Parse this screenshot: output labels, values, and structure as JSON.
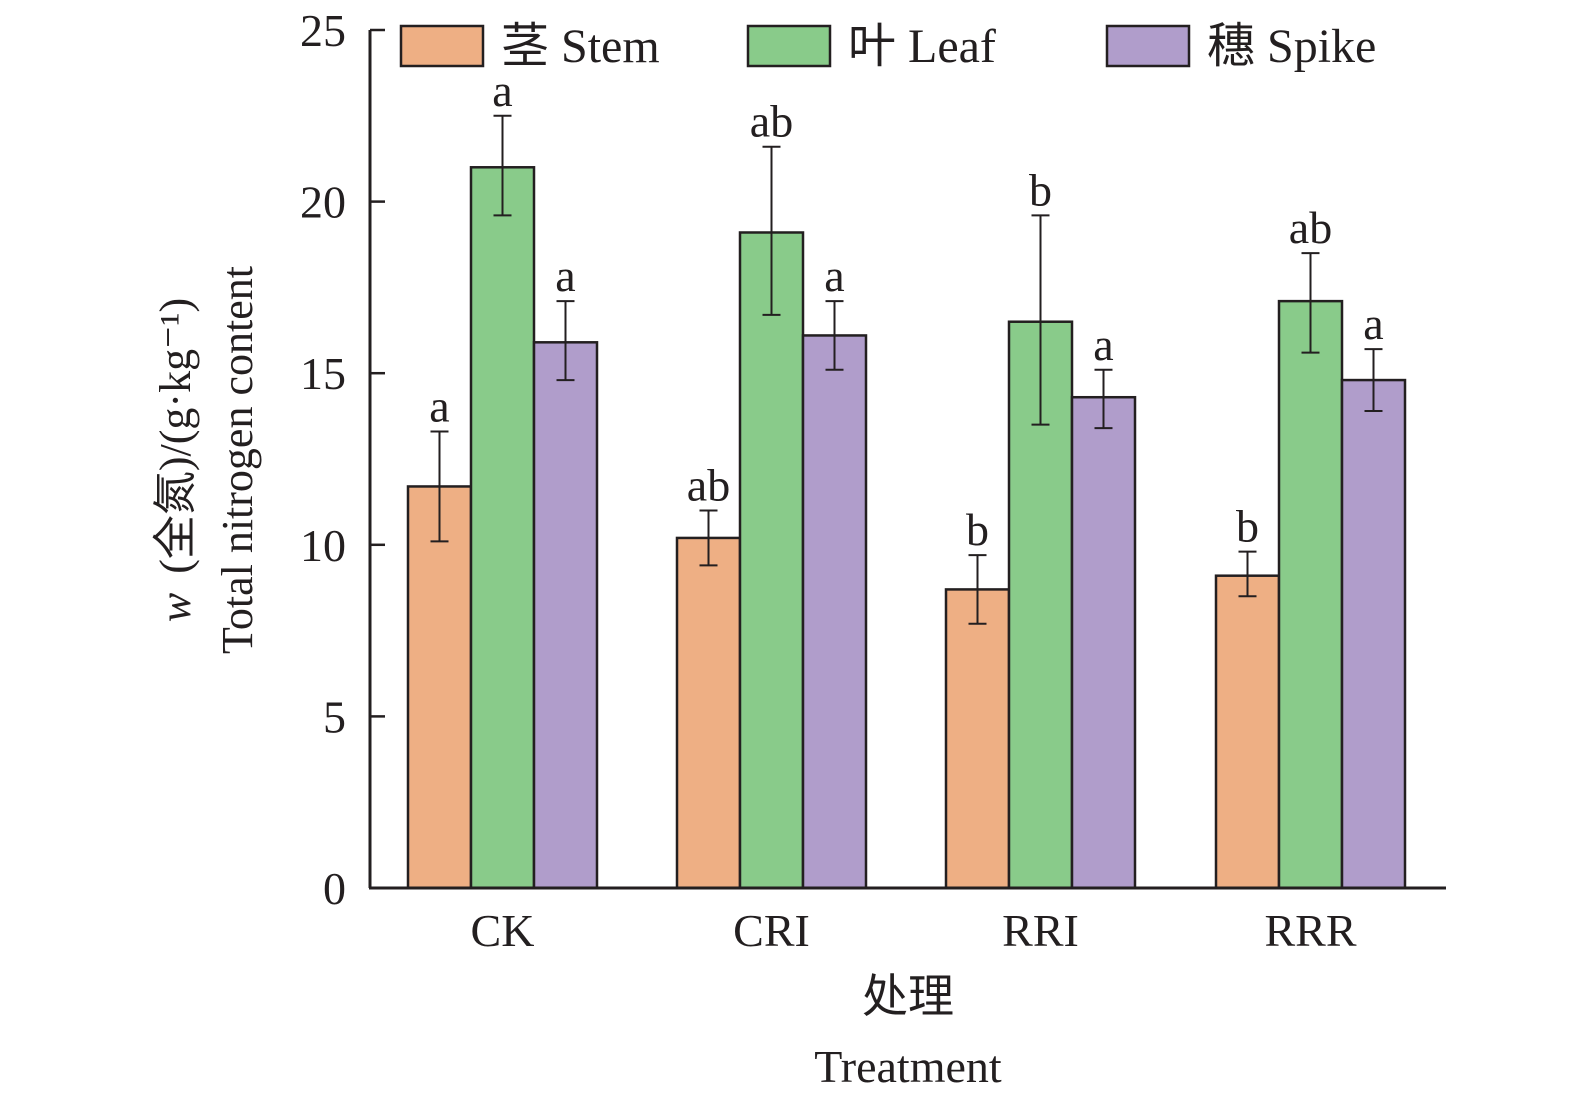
{
  "chart_data": {
    "type": "bar",
    "title": "",
    "xlabel": "处理",
    "xlabel_en": "Treatment",
    "ylabel_prefix": "w",
    "ylabel": "(全氮)/(g·kg⁻¹)",
    "ylabel_en": "Total nitrogen content",
    "ylim": [
      0,
      25
    ],
    "yticks": [
      0,
      5,
      10,
      15,
      20,
      25
    ],
    "ytick_labels": [
      "0",
      "5",
      "10",
      "15",
      "20",
      "25"
    ],
    "grid": false,
    "legend_position": "top",
    "categories": [
      "CK",
      "CRI",
      "RRI",
      "RRR"
    ],
    "series": [
      {
        "name": "茎 Stem",
        "color": "#eeaf84",
        "values": [
          11.7,
          10.2,
          8.7,
          9.1
        ],
        "error_low": [
          10.1,
          9.4,
          7.7,
          8.5
        ],
        "error_high": [
          13.3,
          11.0,
          9.7,
          9.8
        ],
        "letters": [
          "a",
          "ab",
          "b",
          "b"
        ]
      },
      {
        "name": "叶 Leaf",
        "color": "#89cb8a",
        "values": [
          21.0,
          19.1,
          16.5,
          17.1
        ],
        "error_low": [
          19.6,
          16.7,
          13.5,
          15.6
        ],
        "error_high": [
          22.5,
          21.6,
          19.6,
          18.5
        ],
        "letters": [
          "a",
          "ab",
          "b",
          "ab"
        ]
      },
      {
        "name": "穗 Spike",
        "color": "#b09dcb",
        "values": [
          15.9,
          16.1,
          14.3,
          14.8
        ],
        "error_low": [
          14.8,
          15.1,
          13.4,
          13.9
        ],
        "error_high": [
          17.1,
          17.1,
          15.1,
          15.7
        ],
        "letters": [
          "a",
          "a",
          "a",
          "a"
        ]
      }
    ]
  }
}
